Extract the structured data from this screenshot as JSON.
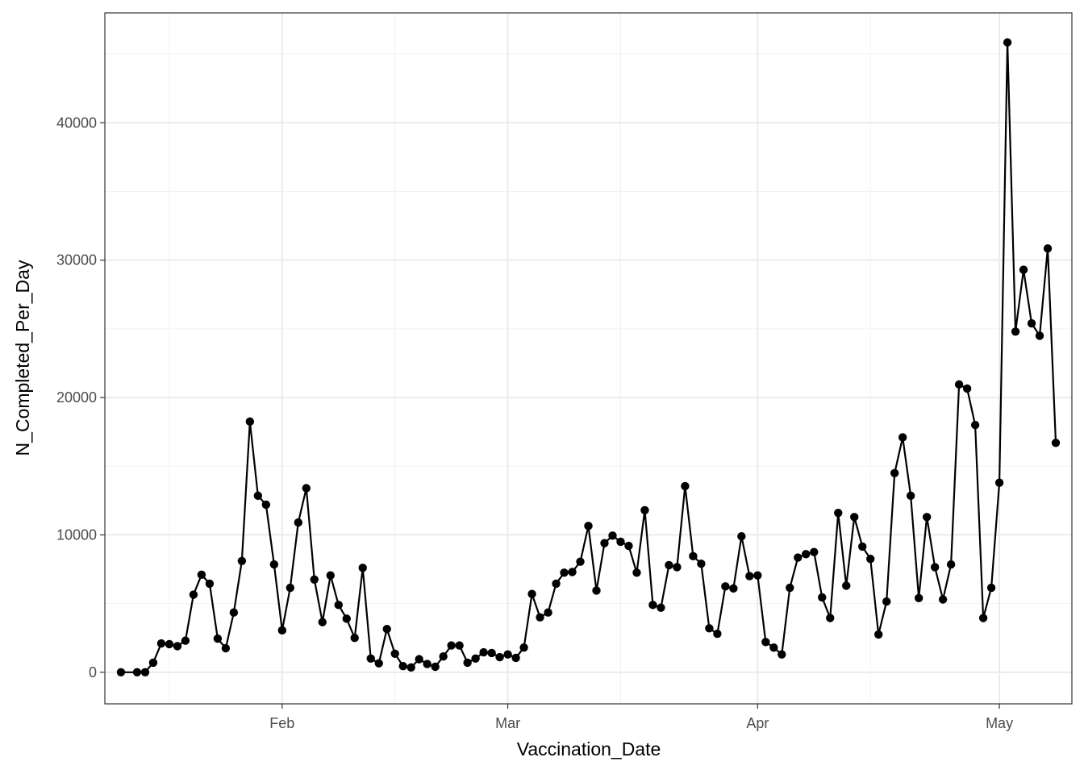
{
  "chart_data": {
    "type": "line",
    "markers": true,
    "title": "",
    "xlabel": "Vaccination_Date",
    "ylabel": "N_Completed_Per_Day",
    "x_ticks": [
      {
        "date": "2021-02-01",
        "label": "Feb"
      },
      {
        "date": "2021-03-01",
        "label": "Mar"
      },
      {
        "date": "2021-04-01",
        "label": "Apr"
      },
      {
        "date": "2021-05-01",
        "label": "May"
      }
    ],
    "x_minor_ticks": [
      "2021-01-18",
      "2021-02-15",
      "2021-03-15",
      "2021-04-15"
    ],
    "y_ticks": [
      0,
      10000,
      20000,
      30000,
      40000
    ],
    "y_tick_labels": [
      "0",
      "10000",
      "20000",
      "30000",
      "40000"
    ],
    "y_minor_ticks": [
      5000,
      15000,
      25000,
      35000,
      45000
    ],
    "xlim": [
      "2021-01-10",
      "2021-05-10"
    ],
    "ylim": [
      -2300,
      48000
    ],
    "grid": true,
    "theme": "bw",
    "colors": {
      "line": "#000000",
      "points": "#000000"
    },
    "series": [
      {
        "values": [
          [
            "2021-01-12",
            0
          ],
          [
            "2021-01-14",
            0
          ],
          [
            "2021-01-15",
            0
          ],
          [
            "2021-01-16",
            700
          ],
          [
            "2021-01-17",
            2100
          ],
          [
            "2021-01-18",
            2050
          ],
          [
            "2021-01-19",
            1900
          ],
          [
            "2021-01-20",
            2300
          ],
          [
            "2021-01-21",
            5650
          ],
          [
            "2021-01-22",
            7100
          ],
          [
            "2021-01-23",
            6450
          ],
          [
            "2021-01-24",
            2450
          ],
          [
            "2021-01-25",
            1750
          ],
          [
            "2021-01-26",
            4350
          ],
          [
            "2021-01-27",
            8100
          ],
          [
            "2021-01-28",
            18250
          ],
          [
            "2021-01-29",
            12850
          ],
          [
            "2021-01-30",
            12200
          ],
          [
            "2021-01-31",
            7850
          ],
          [
            "2021-02-01",
            3050
          ],
          [
            "2021-02-02",
            6150
          ],
          [
            "2021-02-03",
            10900
          ],
          [
            "2021-02-04",
            13400
          ],
          [
            "2021-02-05",
            6750
          ],
          [
            "2021-02-06",
            3650
          ],
          [
            "2021-02-07",
            7050
          ],
          [
            "2021-02-08",
            4900
          ],
          [
            "2021-02-09",
            3900
          ],
          [
            "2021-02-10",
            2500
          ],
          [
            "2021-02-11",
            7600
          ],
          [
            "2021-02-12",
            1000
          ],
          [
            "2021-02-13",
            650
          ],
          [
            "2021-02-14",
            3150
          ],
          [
            "2021-02-15",
            1350
          ],
          [
            "2021-02-16",
            450
          ],
          [
            "2021-02-17",
            350
          ],
          [
            "2021-02-18",
            950
          ],
          [
            "2021-02-19",
            600
          ],
          [
            "2021-02-20",
            400
          ],
          [
            "2021-02-21",
            1150
          ],
          [
            "2021-02-22",
            1950
          ],
          [
            "2021-02-23",
            1950
          ],
          [
            "2021-02-24",
            700
          ],
          [
            "2021-02-25",
            1000
          ],
          [
            "2021-02-26",
            1450
          ],
          [
            "2021-02-27",
            1400
          ],
          [
            "2021-02-28",
            1100
          ],
          [
            "2021-03-01",
            1300
          ],
          [
            "2021-03-02",
            1050
          ],
          [
            "2021-03-03",
            1800
          ],
          [
            "2021-03-04",
            5700
          ],
          [
            "2021-03-05",
            4000
          ],
          [
            "2021-03-06",
            4350
          ],
          [
            "2021-03-07",
            6450
          ],
          [
            "2021-03-08",
            7250
          ],
          [
            "2021-03-09",
            7300
          ],
          [
            "2021-03-10",
            8050
          ],
          [
            "2021-03-11",
            10650
          ],
          [
            "2021-03-12",
            5950
          ],
          [
            "2021-03-13",
            9400
          ],
          [
            "2021-03-14",
            9950
          ],
          [
            "2021-03-15",
            9500
          ],
          [
            "2021-03-16",
            9200
          ],
          [
            "2021-03-17",
            7250
          ],
          [
            "2021-03-18",
            11800
          ],
          [
            "2021-03-19",
            4900
          ],
          [
            "2021-03-20",
            4700
          ],
          [
            "2021-03-21",
            7800
          ],
          [
            "2021-03-22",
            7650
          ],
          [
            "2021-03-23",
            13550
          ],
          [
            "2021-03-24",
            8450
          ],
          [
            "2021-03-25",
            7900
          ],
          [
            "2021-03-26",
            3200
          ],
          [
            "2021-03-27",
            2800
          ],
          [
            "2021-03-28",
            6250
          ],
          [
            "2021-03-29",
            6100
          ],
          [
            "2021-03-30",
            9900
          ],
          [
            "2021-03-31",
            7000
          ],
          [
            "2021-04-01",
            7050
          ],
          [
            "2021-04-02",
            2200
          ],
          [
            "2021-04-03",
            1800
          ],
          [
            "2021-04-04",
            1300
          ],
          [
            "2021-04-05",
            6150
          ],
          [
            "2021-04-06",
            8350
          ],
          [
            "2021-04-07",
            8600
          ],
          [
            "2021-04-08",
            8750
          ],
          [
            "2021-04-09",
            5450
          ],
          [
            "2021-04-10",
            3950
          ],
          [
            "2021-04-11",
            11600
          ],
          [
            "2021-04-12",
            6300
          ],
          [
            "2021-04-13",
            11300
          ],
          [
            "2021-04-14",
            9150
          ],
          [
            "2021-04-15",
            8250
          ],
          [
            "2021-04-16",
            2750
          ],
          [
            "2021-04-17",
            5150
          ],
          [
            "2021-04-18",
            14500
          ],
          [
            "2021-04-19",
            17100
          ],
          [
            "2021-04-20",
            12850
          ],
          [
            "2021-04-21",
            5400
          ],
          [
            "2021-04-22",
            11300
          ],
          [
            "2021-04-23",
            7650
          ],
          [
            "2021-04-24",
            5300
          ],
          [
            "2021-04-25",
            7850
          ],
          [
            "2021-04-26",
            20950
          ],
          [
            "2021-04-27",
            20650
          ],
          [
            "2021-04-28",
            18000
          ],
          [
            "2021-04-29",
            3950
          ],
          [
            "2021-04-30",
            6150
          ],
          [
            "2021-05-01",
            13800
          ],
          [
            "2021-05-02",
            45850
          ],
          [
            "2021-05-03",
            24800
          ],
          [
            "2021-05-04",
            29300
          ],
          [
            "2021-05-05",
            25400
          ],
          [
            "2021-05-06",
            24500
          ],
          [
            "2021-05-07",
            30850
          ],
          [
            "2021-05-08",
            16700
          ]
        ]
      }
    ]
  }
}
